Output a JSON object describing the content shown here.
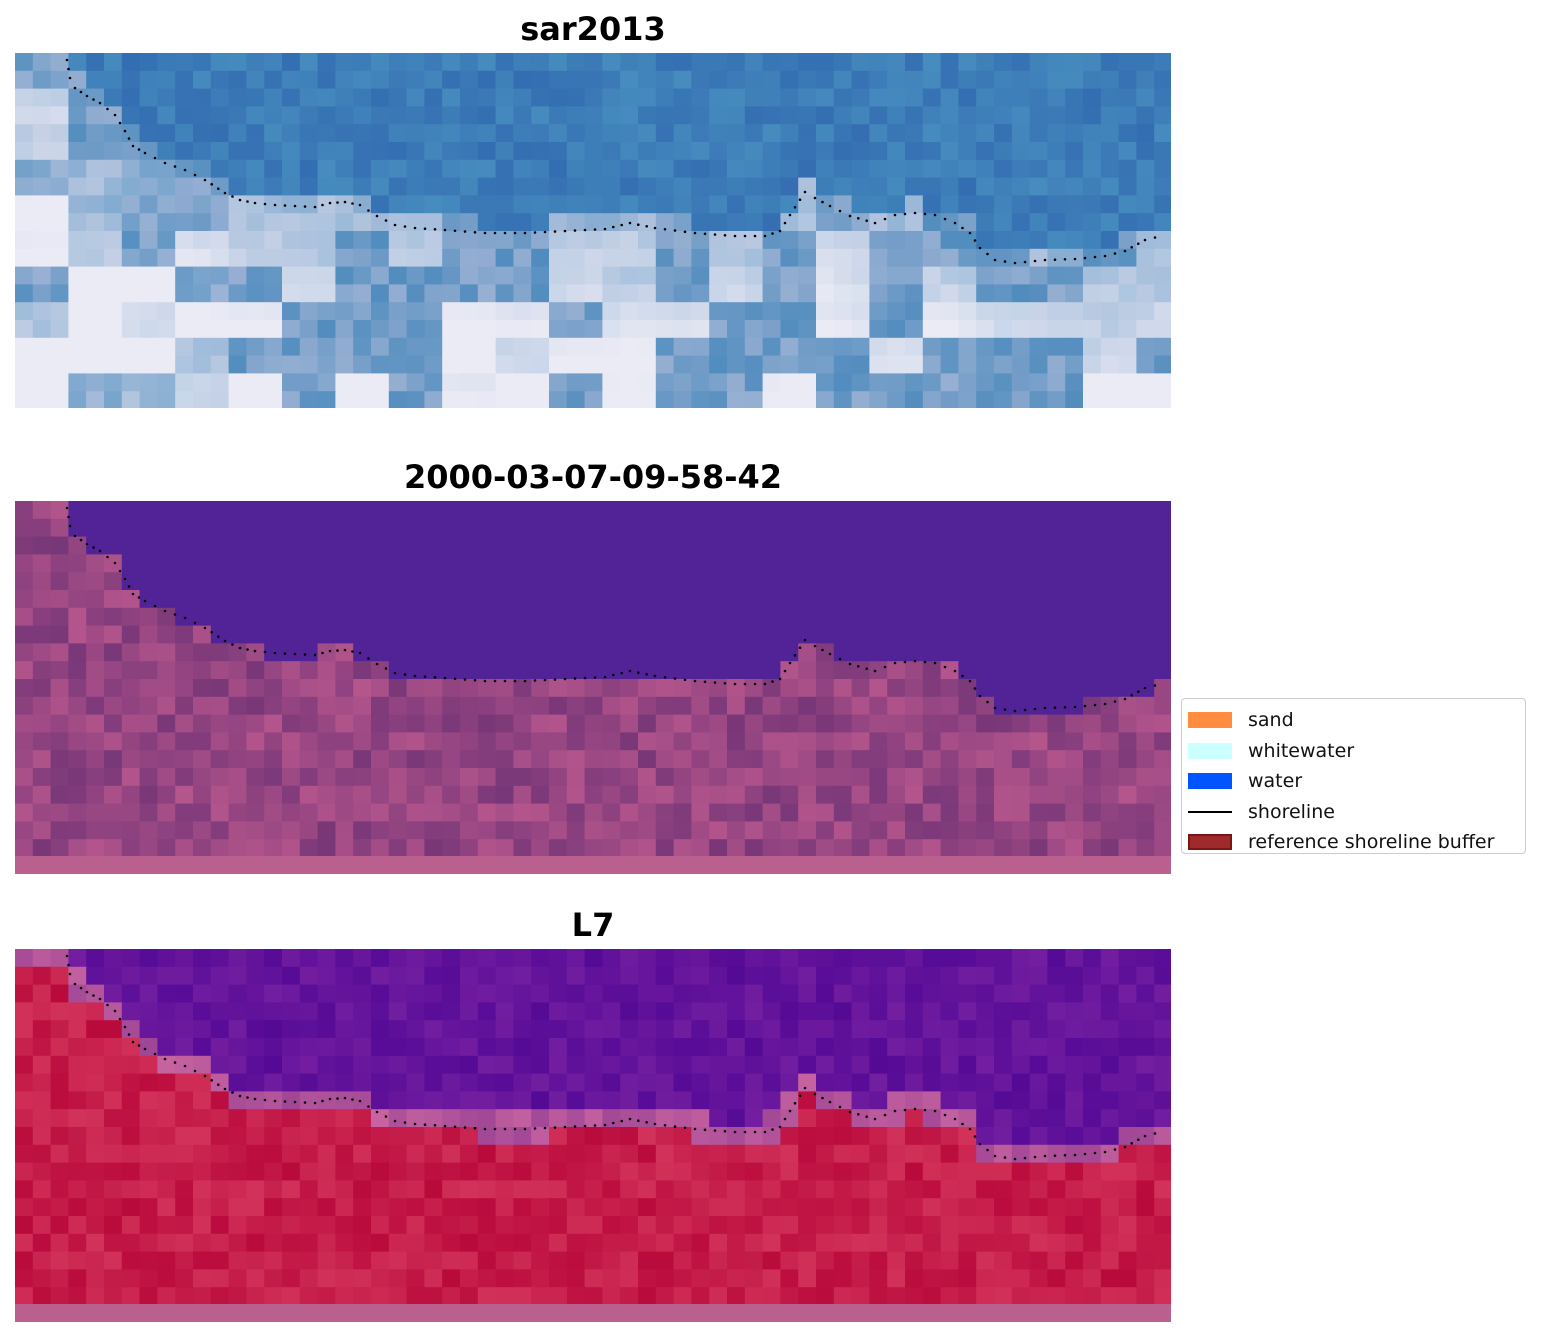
{
  "panels": [
    {
      "title": "sar2013"
    },
    {
      "title": "2000-03-07-09-58-42"
    },
    {
      "title": "L7"
    }
  ],
  "legend": {
    "items": [
      {
        "label": "sand",
        "color": "#ff8c3f",
        "kind": "patch"
      },
      {
        "label": "whitewater",
        "color": "#ccffff",
        "kind": "patch"
      },
      {
        "label": "water",
        "color": "#0055ff",
        "kind": "patch"
      },
      {
        "label": "shoreline",
        "color": "#000000",
        "kind": "line"
      },
      {
        "label": "reference shoreline buffer",
        "color": "#9e2a2b",
        "edge": "#7a1515",
        "kind": "patch"
      }
    ]
  },
  "shoreline_color": "#000000"
}
